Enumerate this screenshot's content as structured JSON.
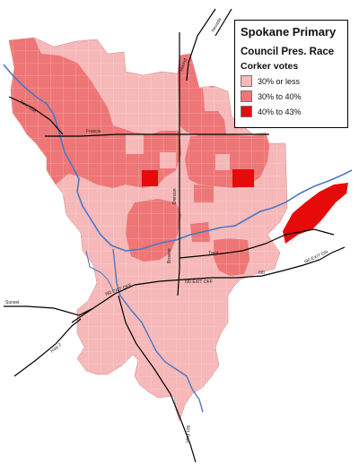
{
  "legend": {
    "title": "Spokane Primary",
    "subtitle": "Council Pres. Race",
    "variable": "Corker votes",
    "classes": [
      {
        "label": "30% or less",
        "color": "#f6b8b8"
      },
      {
        "label": "30% to 40%",
        "color": "#ee7676"
      },
      {
        "label": "40% to 43%",
        "color": "#e60a0a"
      }
    ]
  },
  "colors": {
    "low": "#f6b8b8",
    "mid": "#ee7676",
    "high": "#e60a0a",
    "river": "#4a78c8",
    "road": "#000000",
    "boundary": "#ffffff"
  },
  "street_labels": [
    "Nevada",
    "Market",
    "Francis",
    "Nine Mile",
    "Division",
    "Trent",
    "Sunset",
    "Browne",
    "Hwy 2",
    "I90",
    "I90 EXIT OFF",
    "I90 EXIT ON",
    "Hwy 195"
  ]
}
